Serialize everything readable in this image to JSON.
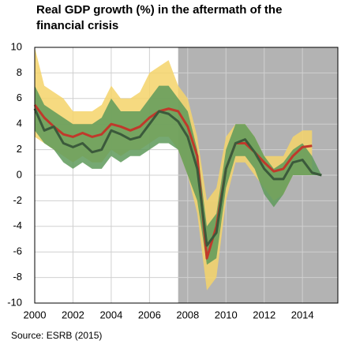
{
  "chart_data": {
    "type": "band-line",
    "title": [
      "Real GDP growth (%) in the aftermath of the",
      "financial crisis"
    ],
    "source": "Source: ESRB (2015)",
    "x": [
      2000,
      2000.5,
      2001,
      2001.5,
      2002,
      2002.5,
      2003,
      2003.5,
      2004,
      2004.5,
      2005,
      2005.5,
      2006,
      2006.5,
      2007,
      2007.5,
      2008,
      2008.5,
      2009,
      2009.5,
      2010,
      2010.5,
      2011,
      2011.5,
      2012,
      2012.5,
      2013,
      2013.5,
      2014,
      2014.5,
      2015
    ],
    "bands": [
      {
        "color": "#f5d36a",
        "high": [
          10,
          7,
          6.5,
          6,
          5,
          5,
          5,
          5.5,
          7,
          6,
          6,
          6.5,
          8,
          8.5,
          9,
          7,
          6,
          3,
          -2,
          -1,
          3,
          4,
          4,
          3,
          1.5,
          1.5,
          1.5,
          3,
          3.5,
          3.5,
          null
        ],
        "low": [
          3,
          2.5,
          2,
          1.5,
          1,
          1.5,
          1,
          1,
          2,
          1.5,
          2,
          2,
          2.5,
          3,
          3,
          2,
          0,
          -3,
          -9,
          -8,
          -2,
          1,
          1,
          0,
          -1,
          -2,
          -1.5,
          0,
          0,
          0,
          null
        ]
      },
      {
        "color": "#5e9a5a",
        "high": [
          7,
          5.5,
          5,
          4.5,
          4,
          4,
          4,
          4.5,
          6,
          5,
          5,
          5,
          6,
          7,
          7,
          6,
          5,
          2,
          -4,
          -3,
          2,
          4,
          4,
          3,
          1.5,
          0.5,
          1,
          2,
          2.5,
          1.5,
          0
        ],
        "low": [
          3.5,
          2.5,
          2,
          1,
          0.5,
          1,
          0.5,
          0.5,
          1.5,
          1,
          1.5,
          1.5,
          2,
          2.5,
          2.5,
          2,
          0,
          -2,
          -7,
          -6.5,
          -1,
          1.5,
          1.5,
          0.5,
          -1.5,
          -2.5,
          -1.5,
          0,
          0,
          0,
          0
        ]
      }
    ],
    "series": [
      {
        "color": "#c0392b",
        "values": [
          5.5,
          4.5,
          3.8,
          3.2,
          3.0,
          3.3,
          3.0,
          3.2,
          4.0,
          3.8,
          3.5,
          3.8,
          4.5,
          5.0,
          5.2,
          5.0,
          3.8,
          1.5,
          -6.5,
          -4,
          0.5,
          2.5,
          2.5,
          1.8,
          1.0,
          0.3,
          0.5,
          1.5,
          2.2,
          2.3,
          null
        ]
      },
      {
        "color": "#3b5a3b",
        "values": [
          5.2,
          3.5,
          3.8,
          2.5,
          2.2,
          2.5,
          1.8,
          2.0,
          3.5,
          3.2,
          2.8,
          3.0,
          4.0,
          5.0,
          4.8,
          4.2,
          3.0,
          0.5,
          -5.5,
          -4.5,
          0.5,
          2.5,
          2.8,
          1.8,
          0.5,
          -0.3,
          -0.3,
          1.0,
          1.2,
          0.2,
          0
        ]
      }
    ],
    "shaded_region": [
      2007.5,
      2015.85
    ],
    "xlim": [
      2000,
      2015.85
    ],
    "xticks": [
      2000,
      2002,
      2004,
      2006,
      2008,
      2010,
      2012,
      2014
    ],
    "ylim": [
      -10,
      10
    ],
    "yticks": [
      -10,
      -8,
      -6,
      -4,
      -2,
      0,
      2,
      4,
      6,
      8,
      10
    ],
    "grid": true
  }
}
